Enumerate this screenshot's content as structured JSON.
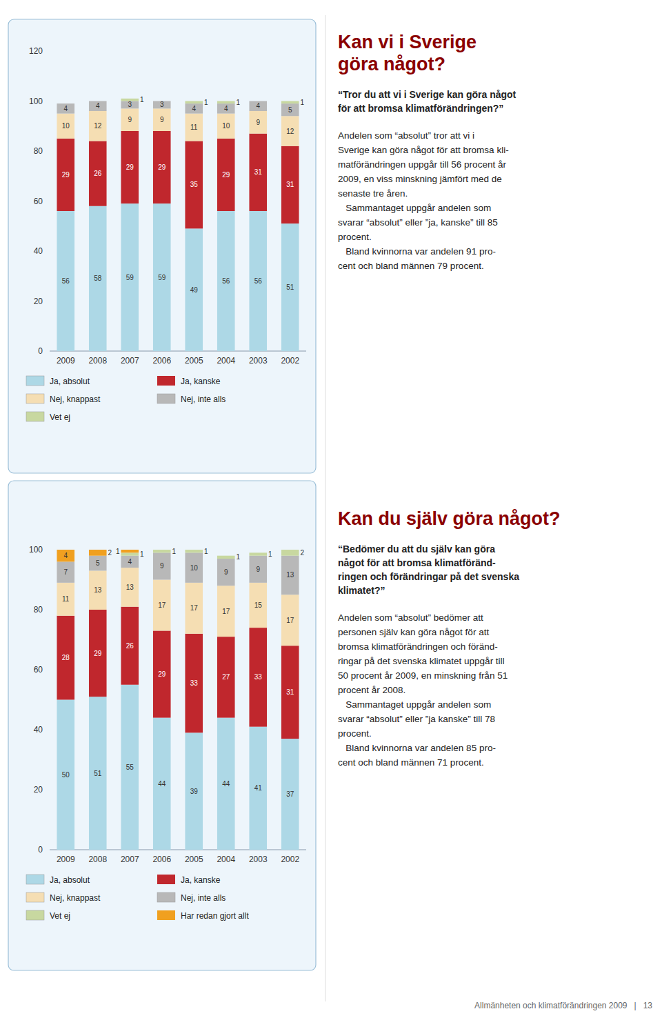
{
  "chart_data": [
    {
      "type": "bar",
      "stacked": true,
      "data_labels": true,
      "grid": false,
      "legend": "bottom",
      "title": "Kan vi i Sverige\ngöra något?",
      "subtitle": "“Tror du att vi i Sverige kan göra något\nför att bromsa klimatförändringen?”",
      "annotations": [
        "Andelen som “absolut” tror att vi i\nSverige kan göra något för att bromsa kli-\nmatförändringen uppgår till 56 procent år\n2009, en viss minskning jämfört med de\nsenaste tre åren.\n   Sammantaget uppgår andelen som\nsvarar “absolut” eller ”ja, kanske” till 85\nprocent.\n   Bland kvinnorna var andelen 91 pro-\ncent och bland männen 79 procent."
      ],
      "categories": [
        "2009",
        "2008",
        "2007",
        "2006",
        "2005",
        "2004",
        "2003",
        "2002"
      ],
      "ylim": [
        0,
        120
      ],
      "yticks": [
        0,
        20,
        40,
        60,
        80,
        100,
        120
      ],
      "series": [
        {
          "name": "Ja, absolut",
          "color": "#add8e6",
          "values": [
            56,
            58,
            59,
            59,
            49,
            56,
            56,
            51
          ]
        },
        {
          "name": "Ja, kanske",
          "color": "#c0272d",
          "values": [
            29,
            26,
            29,
            29,
            35,
            29,
            31,
            31
          ]
        },
        {
          "name": "Nej, knappast",
          "color": "#f5deb3",
          "values": [
            10,
            12,
            9,
            9,
            11,
            10,
            9,
            12
          ]
        },
        {
          "name": "Nej, inte alls",
          "color": "#b8b8b8",
          "values": [
            4,
            4,
            3,
            3,
            4,
            4,
            4,
            5
          ]
        },
        {
          "name": "Vet ej",
          "color": "#c8d8a0",
          "values": [
            0,
            0,
            1,
            0,
            1,
            1,
            0,
            1
          ]
        }
      ]
    },
    {
      "type": "bar",
      "stacked": true,
      "data_labels": true,
      "grid": false,
      "legend": "bottom",
      "title": "Kan du själv göra något?",
      "subtitle": "“Bedömer du att du själv kan göra\nnågot för att bromsa klimatföränd-\nringen och förändringar på det svenska\nklimatet?”",
      "annotations": [
        "Andelen som “absolut” bedömer att\npersonen själv kan göra något för att\nbromsa klimatförändringen och föränd-\nringar på det svenska klimatet uppgår till\n50 procent år 2009, en minskning från 51\nprocent år 2008.\n   Sammantaget uppgår andelen som\nsvarar “absolut” eller ”ja kanske” till 78\nprocent.\n   Bland kvinnorna var andelen 85 pro-\ncent och bland männen 71 procent.",
        "Allmänheten och klimatförändringen 2009   |   13"
      ],
      "categories": [
        "2009",
        "2008",
        "2007",
        "2006",
        "2005",
        "2004",
        "2003",
        "2002"
      ],
      "ylim": [
        0,
        100
      ],
      "yticks": [
        0,
        20,
        40,
        60,
        80,
        100
      ],
      "series": [
        {
          "name": "Ja, absolut",
          "color": "#add8e6",
          "values": [
            50,
            51,
            55,
            44,
            39,
            44,
            41,
            37
          ]
        },
        {
          "name": "Ja, kanske",
          "color": "#c0272d",
          "values": [
            28,
            29,
            26,
            29,
            33,
            27,
            33,
            31
          ]
        },
        {
          "name": "Nej, knappast",
          "color": "#f5deb3",
          "values": [
            11,
            13,
            13,
            17,
            17,
            17,
            15,
            17
          ]
        },
        {
          "name": "Nej, inte alls",
          "color": "#b8b8b8",
          "values": [
            7,
            5,
            4,
            9,
            10,
            9,
            9,
            13
          ]
        },
        {
          "name": "Vet ej",
          "color": "#c8d8a0",
          "values": [
            0,
            0,
            1,
            1,
            1,
            1,
            1,
            2
          ]
        },
        {
          "name": "Har redan gjort allt",
          "color": "#f0a020",
          "values": [
            4,
            2,
            1,
            0,
            0,
            0,
            0,
            0
          ]
        }
      ]
    }
  ]
}
